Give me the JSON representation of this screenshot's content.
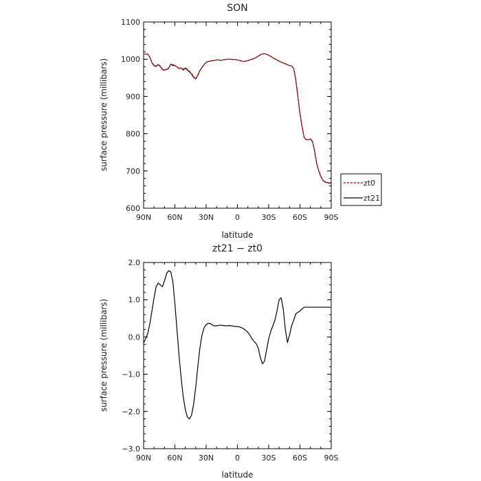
{
  "chart_data": [
    {
      "type": "line",
      "title": "SON",
      "xlabel": "latitude",
      "ylabel": "surface pressure (millibars)",
      "xlim": [
        90,
        -90
      ],
      "ylim": [
        600,
        1100
      ],
      "xticks": [
        90,
        60,
        30,
        0,
        -30,
        -60,
        -90
      ],
      "xtick_labels": [
        "90N",
        "60N",
        "30N",
        "0",
        "30S",
        "60S",
        "90S"
      ],
      "yticks": [
        600,
        700,
        800,
        900,
        1000,
        1100
      ],
      "ytick_labels": [
        "600",
        "700",
        "800",
        "900",
        "1000",
        "1100"
      ],
      "legend": {
        "position": "right",
        "entries": [
          "zt0",
          "zt21"
        ]
      },
      "series": [
        {
          "name": "zt0",
          "color": "#cc2222",
          "dash": "dashed",
          "x": [
            90,
            86,
            84,
            82,
            80,
            78,
            76,
            74,
            72,
            70,
            68,
            66,
            64,
            62,
            60,
            58,
            56,
            54,
            52,
            50,
            48,
            46,
            44,
            42,
            40,
            38,
            36,
            34,
            32,
            30,
            28,
            26,
            24,
            22,
            20,
            18,
            16,
            14,
            12,
            10,
            8,
            6,
            4,
            2,
            0,
            -2,
            -4,
            -6,
            -8,
            -10,
            -12,
            -14,
            -16,
            -18,
            -20,
            -22,
            -24,
            -26,
            -28,
            -30,
            -32,
            -34,
            -36,
            -38,
            -40,
            -42,
            -44,
            -46,
            -48,
            -50,
            -52,
            -54,
            -56,
            -58,
            -60,
            -62,
            -64,
            -66,
            -68,
            -70,
            -72,
            -74,
            -76,
            -78,
            -80,
            -82,
            -84,
            -86,
            -88,
            -90
          ],
          "y": [
            1014,
            1014,
            1005,
            990,
            982,
            980,
            985,
            980,
            972,
            970,
            972,
            975,
            985,
            983,
            982,
            980,
            975,
            977,
            973,
            978,
            973,
            968,
            962,
            953,
            948,
            958,
            970,
            978,
            985,
            992,
            994,
            995,
            996,
            997,
            998,
            998,
            997,
            998,
            999,
            1000,
            1000,
            1000,
            999,
            999,
            998,
            997,
            995,
            994,
            995,
            996,
            998,
            1000,
            1002,
            1005,
            1008,
            1012,
            1014,
            1015,
            1013,
            1011,
            1008,
            1004,
            1001,
            998,
            995,
            992,
            990,
            988,
            985,
            983,
            982,
            975,
            945,
            900,
            855,
            820,
            790,
            783,
            784,
            787,
            780,
            755,
            720,
            700,
            685,
            674,
            670,
            668,
            667,
            667
          ]
        },
        {
          "name": "zt21",
          "color": "#000000",
          "dash": "solid",
          "x": [
            90,
            86,
            84,
            82,
            80,
            78,
            76,
            74,
            72,
            70,
            68,
            66,
            64,
            62,
            60,
            58,
            56,
            54,
            52,
            50,
            48,
            46,
            44,
            42,
            40,
            38,
            36,
            34,
            32,
            30,
            28,
            26,
            24,
            22,
            20,
            18,
            16,
            14,
            12,
            10,
            8,
            6,
            4,
            2,
            0,
            -2,
            -4,
            -6,
            -8,
            -10,
            -12,
            -14,
            -16,
            -18,
            -20,
            -22,
            -24,
            -26,
            -28,
            -30,
            -32,
            -34,
            -36,
            -38,
            -40,
            -42,
            -44,
            -46,
            -48,
            -50,
            -52,
            -54,
            -56,
            -58,
            -60,
            -62,
            -64,
            -66,
            -68,
            -70,
            -72,
            -74,
            -76,
            -78,
            -80,
            -82,
            -84,
            -86,
            -88,
            -90
          ],
          "y": [
            1014,
            1014,
            1005,
            991,
            983,
            981,
            986,
            981,
            973,
            971,
            973,
            976,
            987,
            985,
            983,
            980,
            975,
            976,
            971,
            976,
            971,
            966,
            960,
            951,
            947,
            957,
            969,
            978,
            985,
            992,
            994,
            995,
            996,
            997,
            998,
            998,
            997,
            998,
            999,
            1000,
            1000,
            1000,
            999,
            999,
            998,
            997,
            995,
            994,
            995,
            996,
            998,
            1000,
            1002,
            1005,
            1008,
            1012,
            1014,
            1015,
            1013,
            1011,
            1008,
            1004,
            1001,
            998,
            995,
            992,
            990,
            988,
            985,
            983,
            982,
            975,
            945,
            900,
            855,
            820,
            790,
            784,
            784,
            786,
            779,
            755,
            721,
            701,
            686,
            675,
            671,
            669,
            668,
            668
          ]
        }
      ]
    },
    {
      "type": "line",
      "title": "zt21 − zt0",
      "xlabel": "latitude",
      "ylabel": "surface pressure (millibars)",
      "xlim": [
        90,
        -90
      ],
      "ylim": [
        -3.0,
        2.0
      ],
      "xticks": [
        90,
        60,
        30,
        0,
        -30,
        -60,
        -90
      ],
      "xtick_labels": [
        "90N",
        "60N",
        "30N",
        "0",
        "30S",
        "60S",
        "90S"
      ],
      "yticks": [
        -3.0,
        -2.0,
        -1.0,
        0.0,
        1.0,
        2.0
      ],
      "ytick_labels": [
        "−3.0",
        "−2.0",
        "−1.0",
        "0.0",
        "1.0",
        "2.0"
      ],
      "series": [
        {
          "color": "#000000",
          "dash": "solid",
          "x": [
            90,
            88,
            86,
            84,
            82,
            80,
            78,
            76,
            74,
            72,
            70,
            68,
            66,
            64,
            62,
            60,
            58,
            56,
            54,
            52,
            50,
            48,
            46,
            44,
            42,
            40,
            38,
            36,
            34,
            32,
            30,
            28,
            26,
            24,
            22,
            20,
            18,
            16,
            14,
            12,
            10,
            8,
            6,
            4,
            2,
            0,
            -2,
            -4,
            -6,
            -8,
            -10,
            -12,
            -14,
            -16,
            -18,
            -20,
            -22,
            -24,
            -26,
            -28,
            -30,
            -32,
            -34,
            -36,
            -38,
            -40,
            -42,
            -44,
            -46,
            -48,
            -50,
            -52,
            -54,
            -56,
            -58,
            -60,
            -62,
            -64,
            -66,
            -68,
            -70,
            -72,
            -74,
            -76,
            -78,
            -80,
            -82,
            -84,
            -86,
            -88,
            -90
          ],
          "y": [
            -0.15,
            -0.05,
            0.1,
            0.35,
            0.7,
            1.05,
            1.35,
            1.45,
            1.4,
            1.35,
            1.5,
            1.7,
            1.78,
            1.75,
            1.5,
            0.9,
            0.2,
            -0.5,
            -1.1,
            -1.6,
            -1.95,
            -2.15,
            -2.2,
            -2.1,
            -1.8,
            -1.35,
            -0.8,
            -0.3,
            0.05,
            0.25,
            0.33,
            0.37,
            0.36,
            0.32,
            0.3,
            0.3,
            0.31,
            0.32,
            0.31,
            0.3,
            0.3,
            0.31,
            0.3,
            0.29,
            0.28,
            0.28,
            0.27,
            0.25,
            0.22,
            0.18,
            0.12,
            0.05,
            -0.05,
            -0.12,
            -0.18,
            -0.3,
            -0.55,
            -0.72,
            -0.65,
            -0.35,
            -0.05,
            0.15,
            0.3,
            0.45,
            0.7,
            1.0,
            1.05,
            0.75,
            0.2,
            -0.15,
            0.05,
            0.3,
            0.45,
            0.62,
            0.66,
            0.7,
            0.75,
            0.8,
            0.8,
            0.8,
            0.8,
            0.8,
            0.8,
            0.8,
            0.8,
            0.8,
            0.8,
            0.8,
            0.8,
            0.8,
            0.8
          ]
        }
      ]
    }
  ]
}
